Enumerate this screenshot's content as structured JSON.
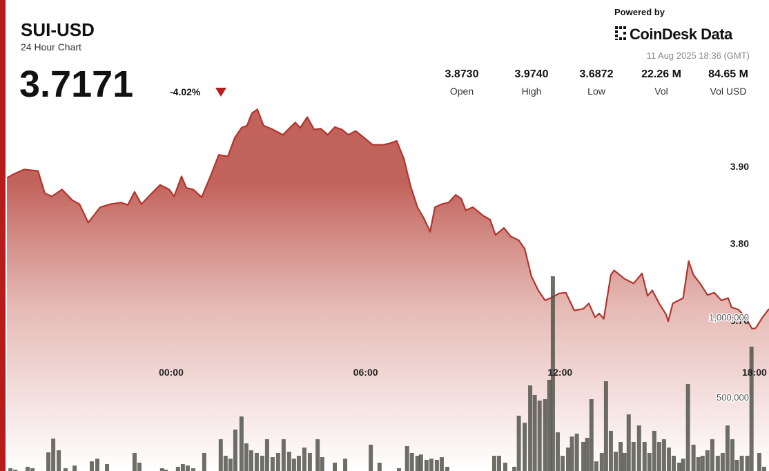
{
  "header": {
    "symbol": "SUI-USD",
    "subtitle": "24 Hour Chart",
    "price": "3.7171",
    "change": "-4.02%",
    "powered_by": "Powered by",
    "brand": "CoinDesk Data",
    "timestamp": "11 Aug 2025 18:36 (GMT)",
    "stats": [
      {
        "value": "3.8730",
        "label": "Open"
      },
      {
        "value": "3.9740",
        "label": "High"
      },
      {
        "value": "3.6872",
        "label": "Low"
      },
      {
        "value": "22.26 M",
        "label": "Vol"
      },
      {
        "value": "84.65 M",
        "label": "Vol USD"
      }
    ]
  },
  "chart_data": [
    {
      "type": "area",
      "color": "#b3332b",
      "grid": true,
      "xlim": [
        -5.07,
        18.45
      ],
      "xticks": [
        {
          "value": 0,
          "label": "00:00"
        },
        {
          "value": 6,
          "label": "06:00"
        },
        {
          "value": 12,
          "label": "12:00"
        },
        {
          "value": 18,
          "label": "18:00"
        }
      ],
      "ylim": [
        3.5045,
        4.116
      ],
      "yticks": [
        {
          "value": 3.7,
          "label": "3.70"
        },
        {
          "value": 3.8,
          "label": "3.80"
        },
        {
          "value": 3.9,
          "label": "3.90"
        }
      ],
      "x": [
        -5.07,
        -4.86,
        -4.54,
        -4.11,
        -3.9,
        -3.68,
        -3.37,
        -3.05,
        -2.83,
        -2.56,
        -2.19,
        -1.87,
        -1.55,
        -1.34,
        -1.13,
        -0.92,
        -0.6,
        -0.34,
        -0.06,
        0.09,
        0.32,
        0.47,
        0.68,
        0.94,
        1.21,
        1.47,
        1.75,
        1.96,
        2.17,
        2.34,
        2.49,
        2.66,
        2.85,
        3.13,
        3.45,
        3.66,
        3.83,
        3.98,
        4.2,
        4.41,
        4.62,
        4.83,
        5.05,
        5.26,
        5.47,
        5.69,
        5.9,
        6.22,
        6.54,
        6.75,
        6.96,
        7.18,
        7.39,
        7.6,
        7.82,
        7.99,
        8.14,
        8.35,
        8.56,
        8.78,
        8.95,
        9.09,
        9.31,
        9.63,
        9.84,
        10.01,
        10.27,
        10.48,
        10.73,
        10.91,
        11.12,
        11.33,
        11.54,
        11.76,
        11.97,
        12.18,
        12.44,
        12.72,
        12.89,
        13.08,
        13.21,
        13.35,
        13.57,
        13.67,
        13.99,
        14.27,
        14.53,
        14.7,
        14.85,
        15.06,
        15.27,
        15.34,
        15.48,
        15.8,
        15.97,
        16.12,
        16.34,
        16.55,
        16.76,
        16.98,
        17.19,
        17.29,
        17.51,
        17.72,
        17.93,
        18.04,
        18.25,
        18.45
      ],
      "values": [
        3.885,
        3.89,
        3.896,
        3.894,
        3.865,
        3.861,
        3.87,
        3.856,
        3.851,
        3.827,
        3.847,
        3.851,
        3.853,
        3.85,
        3.867,
        3.851,
        3.865,
        3.876,
        3.87,
        3.861,
        3.887,
        3.872,
        3.87,
        3.86,
        3.887,
        3.915,
        3.913,
        3.937,
        3.95,
        3.953,
        3.969,
        3.974,
        3.953,
        3.948,
        3.941,
        3.95,
        3.957,
        3.95,
        3.964,
        3.948,
        3.949,
        3.941,
        3.951,
        3.948,
        3.941,
        3.946,
        3.939,
        3.928,
        3.928,
        3.93,
        3.933,
        3.91,
        3.874,
        3.847,
        3.831,
        3.815,
        3.847,
        3.851,
        3.853,
        3.863,
        3.858,
        3.843,
        3.847,
        3.836,
        3.831,
        3.811,
        3.82,
        3.809,
        3.804,
        3.793,
        3.757,
        3.739,
        3.726,
        3.73,
        3.735,
        3.736,
        3.713,
        3.715,
        3.722,
        3.704,
        3.709,
        3.702,
        3.759,
        3.765,
        3.754,
        3.748,
        3.761,
        3.732,
        3.739,
        3.722,
        3.708,
        3.699,
        3.722,
        3.729,
        3.777,
        3.759,
        3.747,
        3.733,
        3.736,
        3.726,
        3.729,
        3.717,
        3.714,
        3.704,
        3.689,
        3.69,
        3.704,
        3.715
      ]
    },
    {
      "type": "bar",
      "color": "#4d4f46",
      "grid": true,
      "xlim": [
        -5.07,
        18.45
      ],
      "ylim": [
        0,
        2978000
      ],
      "yticks": [
        {
          "value": 500000,
          "label": "500,000"
        },
        {
          "value": 1000000,
          "label": "1,000,000"
        }
      ],
      "x": [
        -4.96,
        -4.81,
        -4.43,
        -4.28,
        -3.79,
        -3.64,
        -3.47,
        -3.26,
        -2.98,
        -2.45,
        -2.28,
        -1.98,
        -1.13,
        -0.98,
        -0.28,
        -0.17,
        0.21,
        0.36,
        0.51,
        0.68,
        1.02,
        1.53,
        1.68,
        1.83,
        1.98,
        2.17,
        2.32,
        2.47,
        2.64,
        2.81,
        2.96,
        3.13,
        3.3,
        3.47,
        3.64,
        3.79,
        3.94,
        4.11,
        4.28,
        4.52,
        4.66,
        5.05,
        5.37,
        6.16,
        6.43,
        7.03,
        7.28,
        7.43,
        7.6,
        7.71,
        7.88,
        8.03,
        8.2,
        8.35,
        8.52,
        9.97,
        10.12,
        10.31,
        10.59,
        10.73,
        10.91,
        11.08,
        11.22,
        11.37,
        11.54,
        11.67,
        11.78,
        11.93,
        12.08,
        12.25,
        12.37,
        12.52,
        12.72,
        12.84,
        12.97,
        13.12,
        13.29,
        13.42,
        13.57,
        13.72,
        13.87,
        13.99,
        14.12,
        14.27,
        14.44,
        14.61,
        14.76,
        14.91,
        15.06,
        15.21,
        15.36,
        15.51,
        15.68,
        15.8,
        15.95,
        16.12,
        16.27,
        16.4,
        16.55,
        16.7,
        16.87,
        17.02,
        17.17,
        17.32,
        17.46,
        17.61,
        17.78,
        17.91,
        18.15,
        18.3
      ],
      "values": [
        56000,
        47000,
        65000,
        56000,
        155000,
        241000,
        168000,
        56000,
        73000,
        99000,
        116000,
        82000,
        151000,
        91000,
        56000,
        47000,
        65000,
        82000,
        73000,
        56000,
        151000,
        237000,
        134000,
        116000,
        297000,
        379000,
        211000,
        168000,
        151000,
        134000,
        237000,
        125000,
        151000,
        237000,
        159000,
        116000,
        134000,
        185000,
        151000,
        237000,
        125000,
        91000,
        116000,
        203000,
        91000,
        56000,
        194000,
        151000,
        134000,
        142000,
        108000,
        116000,
        108000,
        125000,
        65000,
        134000,
        134000,
        91000,
        65000,
        384000,
        340000,
        573000,
        513000,
        478000,
        487000,
        608000,
        1254000,
        280000,
        134000,
        185000,
        254000,
        272000,
        220000,
        246000,
        487000,
        99000,
        151000,
        599000,
        289000,
        159000,
        220000,
        151000,
        392000,
        220000,
        323000,
        220000,
        151000,
        289000,
        220000,
        237000,
        185000,
        134000,
        91000,
        116000,
        582000,
        203000,
        125000,
        134000,
        168000,
        237000,
        134000,
        151000,
        323000,
        237000,
        108000,
        134000,
        134000,
        815000,
        151000,
        65000
      ]
    }
  ]
}
